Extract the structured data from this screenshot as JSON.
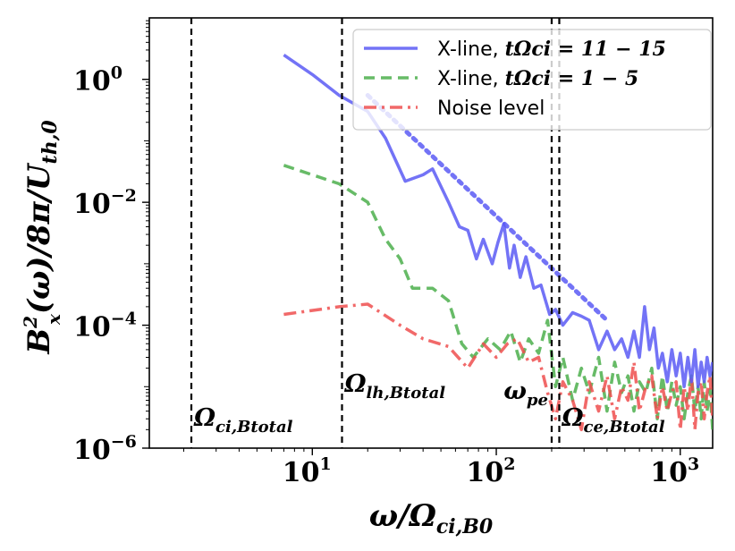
{
  "chart_data": {
    "type": "line",
    "title": "",
    "xlabel": "ω/Ω_ci,B0",
    "ylabel": "B_x²(ω)/8π/U_th,0",
    "xscale": "log",
    "yscale": "log",
    "xlim": [
      1.3,
      1500
    ],
    "ylim": [
      1e-06,
      10
    ],
    "x_ticks": [
      {
        "value": 10,
        "base": "10",
        "exp": "1"
      },
      {
        "value": 100,
        "base": "10",
        "exp": "2"
      },
      {
        "value": 1000,
        "base": "10",
        "exp": "3"
      }
    ],
    "y_ticks": [
      {
        "value": 1e-06,
        "base": "10",
        "exp": "−6"
      },
      {
        "value": 0.0001,
        "base": "10",
        "exp": "−4"
      },
      {
        "value": 0.01,
        "base": "10",
        "exp": "−2"
      },
      {
        "value": 1,
        "base": "10",
        "exp": "0"
      }
    ],
    "legend_position": "top-right",
    "series": [
      {
        "name": "X-line, tΩci = 11 − 15",
        "legend_prefix": "X-line, ",
        "legend_math": "tΩci = 11 − 15",
        "color": "#5b5bf5",
        "style": "solid",
        "x": [
          7,
          10,
          14,
          20,
          25,
          32,
          40,
          45,
          55,
          63,
          70,
          78,
          85,
          95,
          102,
          110,
          118,
          125,
          135,
          145,
          160,
          175,
          195,
          210,
          230,
          260,
          290,
          320,
          360,
          400,
          440,
          480,
          520,
          560,
          600,
          640,
          680,
          720,
          760,
          800,
          850,
          900,
          950,
          1000,
          1050,
          1100,
          1150,
          1200,
          1250,
          1300,
          1350,
          1400,
          1450,
          1500
        ],
        "y": [
          2.5,
          1.2,
          0.55,
          0.3,
          0.11,
          0.022,
          0.028,
          0.035,
          0.01,
          0.004,
          0.0035,
          0.0012,
          0.0025,
          0.001,
          0.0022,
          0.0045,
          0.00085,
          0.002,
          0.0006,
          0.0013,
          0.0004,
          0.00045,
          0.00015,
          0.00018,
          0.0001,
          0.00016,
          0.00014,
          0.00012,
          4e-05,
          8e-05,
          4e-05,
          6e-05,
          3e-05,
          8e-05,
          3e-05,
          0.0002,
          4e-05,
          9e-05,
          2e-05,
          3.5e-05,
          1.2e-05,
          4e-05,
          1.5e-05,
          3.5e-05,
          1e-05,
          3e-05,
          1.2e-05,
          4e-05,
          1e-05,
          2.5e-05,
          1.2e-05,
          3e-05,
          1.5e-05,
          2.5e-05
        ]
      },
      {
        "name": "X-line, tΩci = 1 − 5",
        "legend_prefix": "X-line, ",
        "legend_math": "tΩci = 1 − 5",
        "color": "#4caf4c",
        "style": "dashed",
        "x": [
          7,
          14,
          20,
          25,
          30,
          35,
          45,
          55,
          65,
          75,
          90,
          105,
          120,
          135,
          150,
          170,
          190,
          210,
          230,
          260,
          290,
          320,
          360,
          400,
          440,
          480,
          520,
          560,
          600,
          650,
          700,
          750,
          800,
          850,
          900,
          950,
          1000,
          1050,
          1100,
          1150,
          1200,
          1250,
          1300,
          1350,
          1400,
          1450,
          1500
        ],
        "y": [
          0.04,
          0.02,
          0.01,
          0.0025,
          0.0012,
          0.0004,
          0.0004,
          0.00025,
          5e-05,
          3e-05,
          6e-05,
          4e-05,
          8e-05,
          2.5e-05,
          6e-05,
          3.5e-05,
          0.00012,
          1e-05,
          3e-05,
          6e-06,
          2e-05,
          8e-06,
          3e-05,
          4e-06,
          2.5e-05,
          8e-06,
          1.5e-05,
          4e-06,
          1.2e-05,
          8e-06,
          2e-05,
          3e-06,
          1.5e-05,
          4e-06,
          1.2e-05,
          5e-06,
          1e-05,
          3e-06,
          8e-06,
          1.5e-05,
          4e-06,
          1e-05,
          3e-06,
          1.2e-05,
          4e-06,
          9e-06,
          2e-06
        ]
      },
      {
        "name": "Noise level",
        "legend_prefix": "Noise level",
        "legend_math": "",
        "color": "#ef4f4f",
        "style": "dashdot",
        "x": [
          7,
          14,
          20,
          30,
          40,
          55,
          70,
          85,
          100,
          115,
          130,
          150,
          170,
          190,
          210,
          230,
          260,
          290,
          320,
          360,
          400,
          440,
          480,
          520,
          560,
          600,
          650,
          700,
          750,
          800,
          850,
          900,
          950,
          1000,
          1050,
          1100,
          1150,
          1200,
          1250,
          1300,
          1350,
          1400,
          1450,
          1500
        ],
        "y": [
          0.00015,
          0.0002,
          0.00022,
          0.0001,
          6e-05,
          4.5e-05,
          2e-05,
          5e-05,
          3e-05,
          5e-05,
          6e-05,
          2.5e-05,
          3e-05,
          8e-06,
          3e-06,
          1.2e-05,
          6e-06,
          2e-06,
          1.2e-05,
          4e-06,
          1.5e-05,
          3e-06,
          1e-05,
          6e-06,
          2.5e-05,
          4e-06,
          1e-05,
          1.5e-05,
          3e-06,
          1e-05,
          4e-06,
          8e-06,
          1.2e-05,
          2e-06,
          1e-05,
          4e-06,
          1.5e-05,
          2e-06,
          8e-06,
          1.2e-05,
          3e-06,
          8e-06,
          1.5e-05,
          3e-06
        ]
      }
    ],
    "fit_line": {
      "style": "dotted",
      "color": "#5b5bf5",
      "x": [
        20,
        400
      ],
      "y": [
        0.55,
        0.00012
      ]
    },
    "vlines": [
      {
        "x": 2.2,
        "label_name": "Ω",
        "label_sub": "ci,Btotal",
        "label_pos": "bottom-right"
      },
      {
        "x": 14.5,
        "label_name": "Ω",
        "label_sub": "lh,Btotal",
        "label_pos": "middle-right"
      },
      {
        "x": 200,
        "label_name": "ω",
        "label_sub": "pe",
        "label_pos": "middle-left"
      },
      {
        "x": 220,
        "label_name": "Ω",
        "label_sub": "ce,Btotal",
        "label_pos": "bottom-right"
      }
    ],
    "axis_labels": {
      "x_main": "ω/Ω",
      "x_sub": "ci,B0",
      "y_parts": {
        "b": "B",
        "b_sup": "2",
        "b_sub": "x",
        "rest": "(ω)/8π/U",
        "u_sub": "th,0"
      }
    }
  }
}
